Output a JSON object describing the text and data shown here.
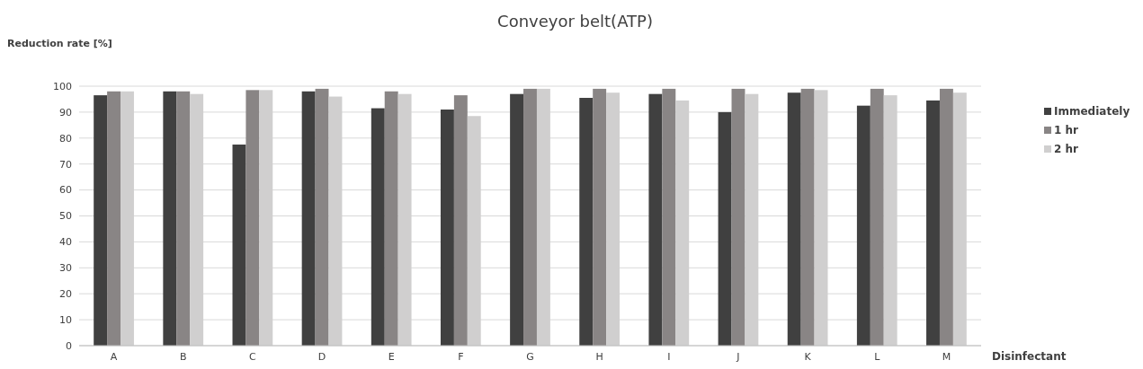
{
  "chart_data": {
    "type": "bar",
    "title": "Conveyor belt(ATP)",
    "xlabel": "Disinfectant",
    "ylabel": "Reduction rate [%]",
    "categories": [
      "A",
      "B",
      "C",
      "D",
      "E",
      "F",
      "G",
      "H",
      "I",
      "J",
      "K",
      "L",
      "M"
    ],
    "series": [
      {
        "name": "Immediately",
        "color": "#404040",
        "values": [
          96.5,
          98,
          77.5,
          98,
          91.5,
          91,
          97,
          95.5,
          97,
          90,
          97.5,
          92.5,
          94.5
        ]
      },
      {
        "name": "1 hr",
        "color": "#898585",
        "values": [
          98,
          98,
          98.5,
          99,
          98,
          96.5,
          99,
          99,
          99,
          99,
          99,
          99,
          99
        ]
      },
      {
        "name": "2 hr",
        "color": "#d0cfcf",
        "values": [
          98,
          97,
          98.5,
          96,
          97,
          88.5,
          99,
          97.5,
          94.5,
          97,
          98.5,
          96.5,
          97.5
        ]
      }
    ],
    "ylim": [
      0,
      100
    ],
    "yticks": [
      0,
      10,
      20,
      30,
      40,
      50,
      60,
      70,
      80,
      90,
      100
    ],
    "grid": "y",
    "legend": "right"
  }
}
